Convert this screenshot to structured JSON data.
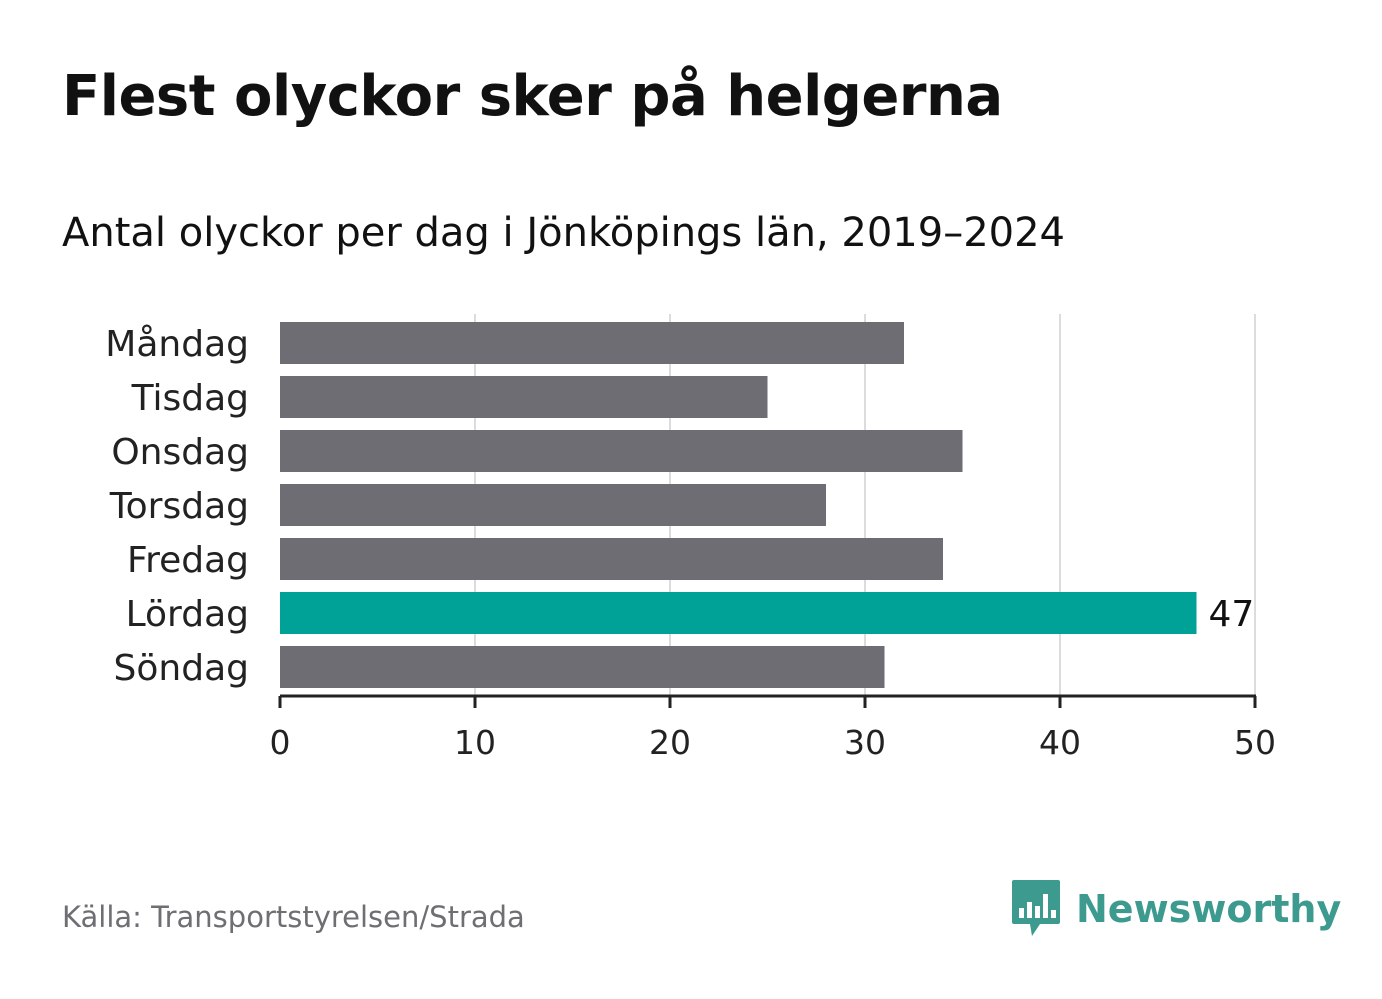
{
  "title": "Flest olyckor sker på helgerna",
  "subtitle": "Antal olyckor per dag i Jönköpings län, 2019–2024",
  "source": "Källa: Transportstyrelsen/Strada",
  "brand": {
    "name": "Newsworthy",
    "icon": "newsworthy-logo-icon"
  },
  "colors": {
    "bar": "#6e6d73",
    "highlight": "#00a297",
    "grid": "#dcdcdc",
    "axis": "#222222",
    "brand": "#3c9a8f"
  },
  "chart_data": {
    "type": "bar",
    "orientation": "horizontal",
    "categories": [
      "Måndag",
      "Tisdag",
      "Onsdag",
      "Torsdag",
      "Fredag",
      "Lördag",
      "Söndag"
    ],
    "values": [
      32,
      25,
      35,
      28,
      34,
      47,
      31
    ],
    "highlight_category": "Lördag",
    "data_labels": {
      "Lördag": "47"
    },
    "xlim": [
      0,
      50
    ],
    "xticks": [
      0,
      10,
      20,
      30,
      40,
      50
    ],
    "xlabel": "",
    "ylabel": "",
    "grid": true,
    "legend": false
  }
}
